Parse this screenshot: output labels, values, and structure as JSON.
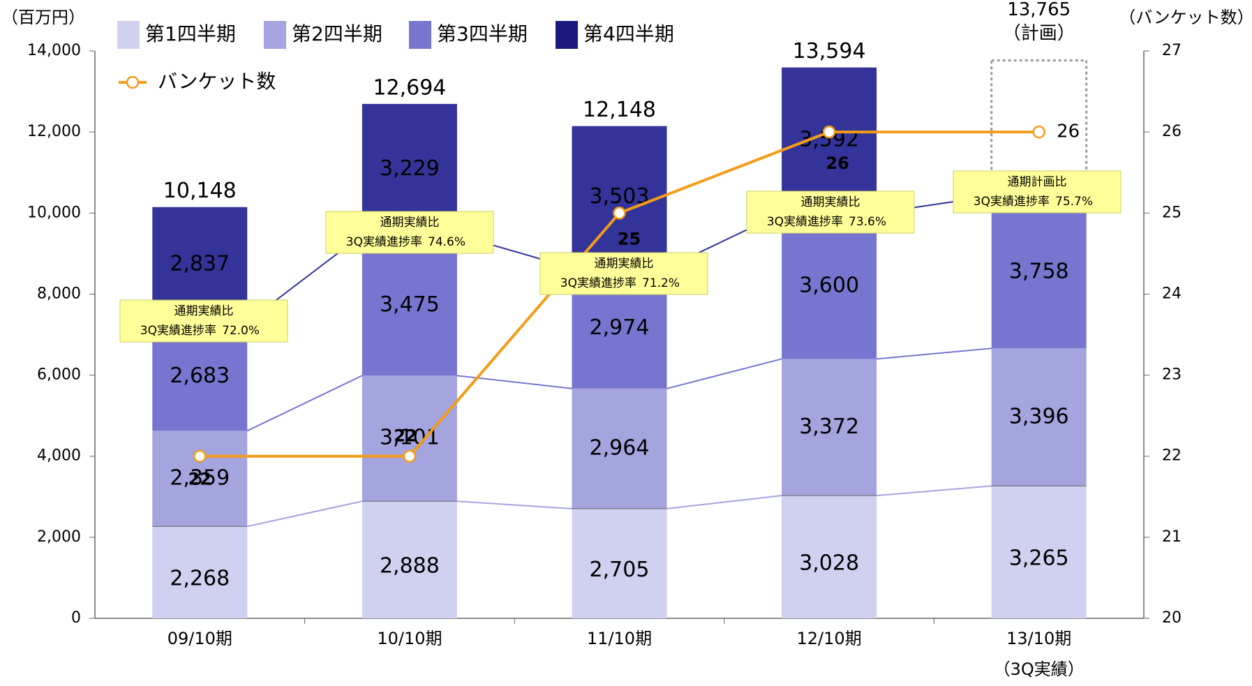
{
  "chart_data": {
    "type": "bar",
    "stacked": true,
    "y_label": "（百万円）",
    "y2_label": "（バンケット数）",
    "categories": [
      "09/10期",
      "10/10期",
      "11/10期",
      "12/10期",
      "13/10期"
    ],
    "category_sublabels": [
      null,
      null,
      null,
      null,
      "（3Q実績）"
    ],
    "series": [
      {
        "name": "第1四半期",
        "color": "#d0d0f0",
        "values": [
          2268,
          2888,
          2705,
          3028,
          3265
        ],
        "value_labels": [
          "2,268",
          "2,888",
          "2,705",
          "3,028",
          "3,265"
        ]
      },
      {
        "name": "第2四半期",
        "color": "#a4a4de",
        "values": [
          2359,
          3101,
          2964,
          3372,
          3396
        ],
        "value_labels": [
          "2,359",
          "3,101",
          "2,964",
          "3,372",
          "3,396"
        ]
      },
      {
        "name": "第3四半期",
        "color": "#7676d0",
        "values": [
          2683,
          3475,
          2974,
          3600,
          3758
        ],
        "value_labels": [
          "2,683",
          "3,475",
          "2,974",
          "3,600",
          "3,758"
        ]
      },
      {
        "name": "第4四半期",
        "color": "#333399",
        "legend_color": "#1a1a80",
        "values": [
          2837,
          3229,
          3503,
          3592,
          null
        ],
        "value_labels": [
          "2,837",
          "3,229",
          "3,503",
          "3,592",
          null
        ]
      },
      {
        "name": "バンケット数",
        "type": "line",
        "axis": "y2",
        "color": "#f39c1a",
        "values": [
          22,
          22,
          25,
          26,
          26
        ]
      }
    ],
    "totals": {
      "values": [
        10148,
        12694,
        12148,
        13594,
        13765
      ],
      "value_labels": [
        "10,148",
        "12,694",
        "12,148",
        "13,594",
        "13,765"
      ],
      "notes": [
        null,
        null,
        null,
        null,
        "（計画）"
      ]
    },
    "annotations": [
      {
        "title": "通期実績比",
        "label": "3Q実績進捗率",
        "value": 72.0,
        "value_label": "72.0%"
      },
      {
        "title": "通期実績比",
        "label": "3Q実績進捗率",
        "value": 74.6,
        "value_label": "74.6%"
      },
      {
        "title": "通期実績比",
        "label": "3Q実績進捗率",
        "value": 71.2,
        "value_label": "71.2%"
      },
      {
        "title": "通期実績比",
        "label": "3Q実績進捗率",
        "value": 73.6,
        "value_label": "73.6%"
      },
      {
        "title": "通期計画比",
        "label": "3Q実績進捗率",
        "value": 75.7,
        "value_label": "75.7%"
      }
    ],
    "ylim": [
      0,
      14000
    ],
    "yticks": [
      0,
      {
        "value": 2000,
        "label": "2,000"
      },
      {
        "value": 4000,
        "label": "4,000"
      },
      {
        "value": 6000,
        "label": "6,000"
      },
      {
        "value": 8000,
        "label": "8,000"
      },
      {
        "value": 10000,
        "label": "10,000"
      },
      {
        "value": 12000,
        "label": "12,000"
      },
      {
        "value": 14000,
        "label": "14,000"
      }
    ],
    "y2lim": [
      20,
      27
    ],
    "y2ticks": [
      20,
      21,
      22,
      23,
      24,
      25,
      26,
      27
    ],
    "grid": false
  }
}
